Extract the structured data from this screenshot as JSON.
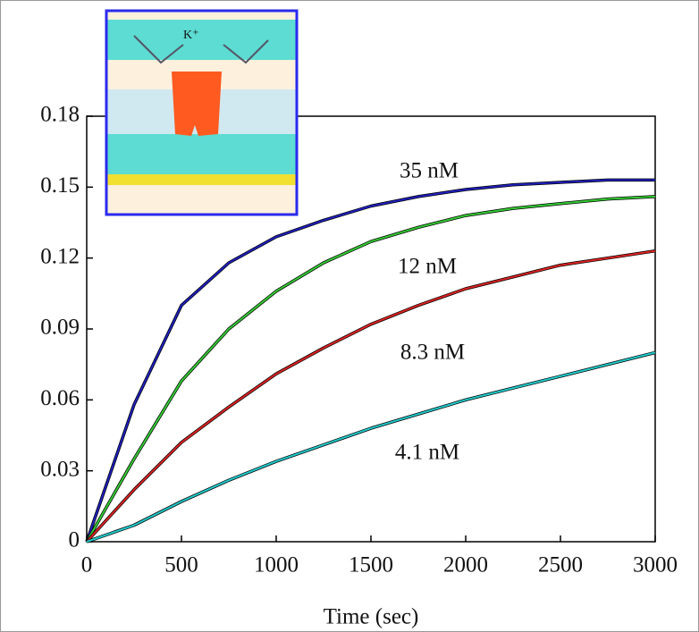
{
  "chart_data": {
    "type": "line",
    "x_label": "Time (sec)",
    "inset_label": "K⁺",
    "x": [
      0,
      250,
      500,
      750,
      1000,
      1250,
      1500,
      1750,
      2000,
      2250,
      2500,
      2750,
      3000
    ],
    "series": [
      {
        "name": "35 nM",
        "color": "#1f1fbf",
        "values": [
          0,
          0.058,
          0.1,
          0.118,
          0.129,
          0.136,
          0.142,
          0.146,
          0.149,
          0.151,
          0.152,
          0.153,
          0.153
        ]
      },
      {
        "name": "12 nM",
        "color": "#33cc33",
        "values": [
          0,
          0.035,
          0.068,
          0.09,
          0.106,
          0.118,
          0.127,
          0.133,
          0.138,
          0.141,
          0.143,
          0.145,
          0.146
        ]
      },
      {
        "name": "8.3 nM",
        "color": "#dd2222",
        "values": [
          0,
          0.022,
          0.042,
          0.057,
          0.071,
          0.082,
          0.092,
          0.1,
          0.107,
          0.112,
          0.117,
          0.12,
          0.123
        ]
      },
      {
        "name": "4.1 nM",
        "color": "#22cccc",
        "values": [
          0,
          0.007,
          0.017,
          0.026,
          0.034,
          0.041,
          0.048,
          0.054,
          0.06,
          0.065,
          0.07,
          0.075,
          0.08
        ]
      }
    ],
    "xlim": [
      0,
      3000
    ],
    "xticks": [
      0,
      500,
      1000,
      1500,
      2000,
      2500,
      3000
    ],
    "ylim": [
      0,
      0.18
    ],
    "yticks": [
      0,
      0.03,
      0.06,
      0.09,
      0.12,
      0.15,
      0.18
    ]
  }
}
